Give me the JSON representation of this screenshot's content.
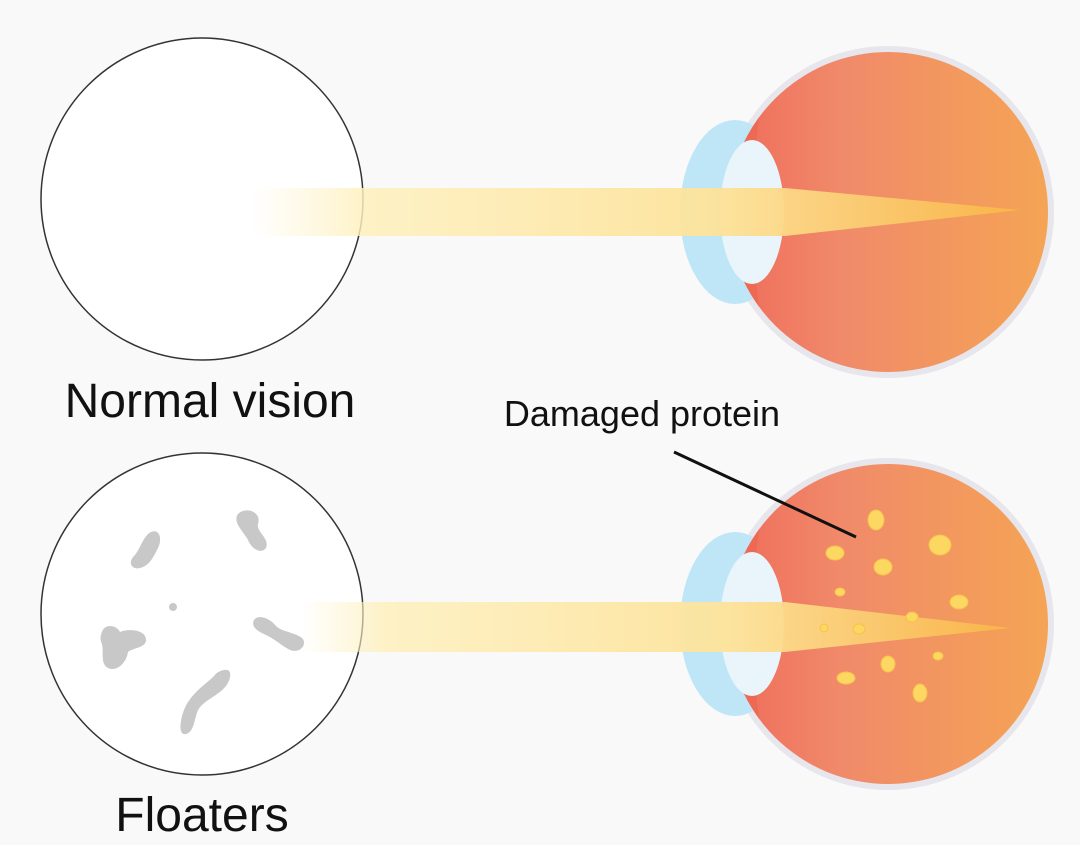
{
  "panels": {
    "normal": {
      "label": "Normal vision"
    },
    "floaters": {
      "label": "Floaters"
    }
  },
  "annotation": {
    "label": "Damaged protein"
  },
  "colors": {
    "background": "#f9f9f9",
    "eyeball_light": "#f5a455",
    "eyeball_dark": "#ef7f68",
    "eye_rim": "#e4e4ea",
    "cornea": "#bfe6f7",
    "lens": "#eaf4fb",
    "light_beam": "#fde9a2",
    "floater": "#c8c8c8",
    "protein_spot": "#fce06a",
    "text": "#111111"
  }
}
